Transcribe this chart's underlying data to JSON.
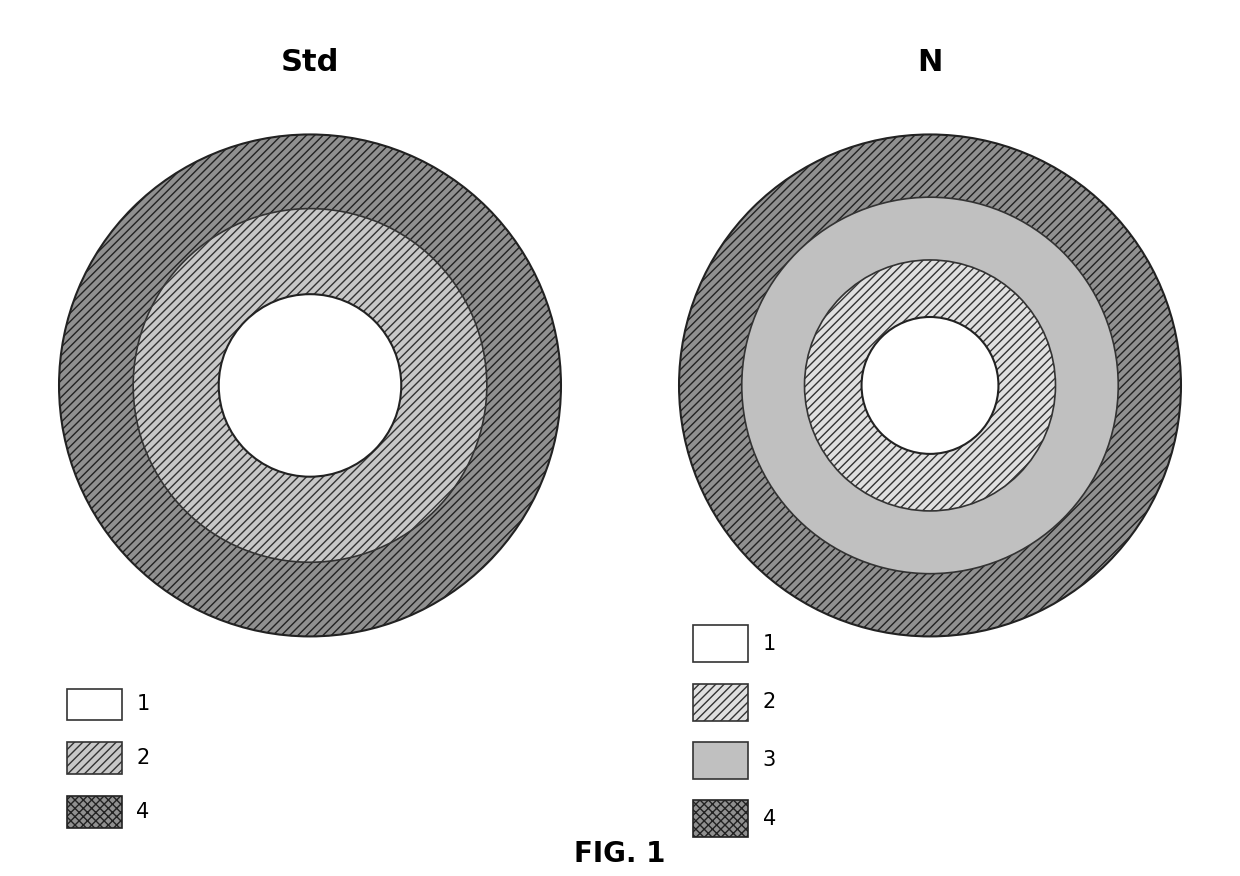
{
  "fig_width": 12.4,
  "fig_height": 8.76,
  "background_color": "#ffffff",
  "title_fontsize": 22,
  "legend_fontsize": 15,
  "fig_label": "FIG. 1",
  "fig_label_fontsize": 20,
  "diagrams": [
    {
      "title": "Std",
      "layers": [
        {
          "label": "4",
          "r": 220,
          "hatch": "////",
          "facecolor": "#909090",
          "edgecolor": "#222222",
          "linewidth": 1.5
        },
        {
          "label": "2",
          "r": 155,
          "hatch": "////",
          "facecolor": "#c8c8c8",
          "edgecolor": "#333333",
          "linewidth": 1.2
        },
        {
          "label": "1",
          "r": 80,
          "hatch": "",
          "facecolor": "#ffffff",
          "edgecolor": "#222222",
          "linewidth": 1.5
        }
      ],
      "legend_items": [
        {
          "label": "1",
          "hatch": "",
          "facecolor": "#ffffff",
          "edgecolor": "#333333"
        },
        {
          "label": "2",
          "hatch": "////",
          "facecolor": "#c8c8c8",
          "edgecolor": "#333333"
        },
        {
          "label": "4",
          "hatch": "xxxx",
          "facecolor": "#909090",
          "edgecolor": "#222222"
        }
      ]
    },
    {
      "title": "N",
      "layers": [
        {
          "label": "4",
          "r": 220,
          "hatch": "////",
          "facecolor": "#909090",
          "edgecolor": "#222222",
          "linewidth": 1.5
        },
        {
          "label": "3",
          "r": 165,
          "hatch": "",
          "facecolor": "#c0c0c0",
          "edgecolor": "#333333",
          "linewidth": 1.2
        },
        {
          "label": "2",
          "r": 110,
          "hatch": "////",
          "facecolor": "#e0e0e0",
          "edgecolor": "#333333",
          "linewidth": 1.2
        },
        {
          "label": "1",
          "r": 60,
          "hatch": "",
          "facecolor": "#ffffff",
          "edgecolor": "#222222",
          "linewidth": 1.5
        }
      ],
      "legend_items": [
        {
          "label": "1",
          "hatch": "",
          "facecolor": "#ffffff",
          "edgecolor": "#333333"
        },
        {
          "label": "2",
          "hatch": "////",
          "facecolor": "#e0e0e0",
          "edgecolor": "#333333"
        },
        {
          "label": "3",
          "hatch": "",
          "facecolor": "#c0c0c0",
          "edgecolor": "#333333"
        },
        {
          "label": "4",
          "hatch": "xxxx",
          "facecolor": "#909090",
          "edgecolor": "#222222"
        }
      ]
    }
  ]
}
